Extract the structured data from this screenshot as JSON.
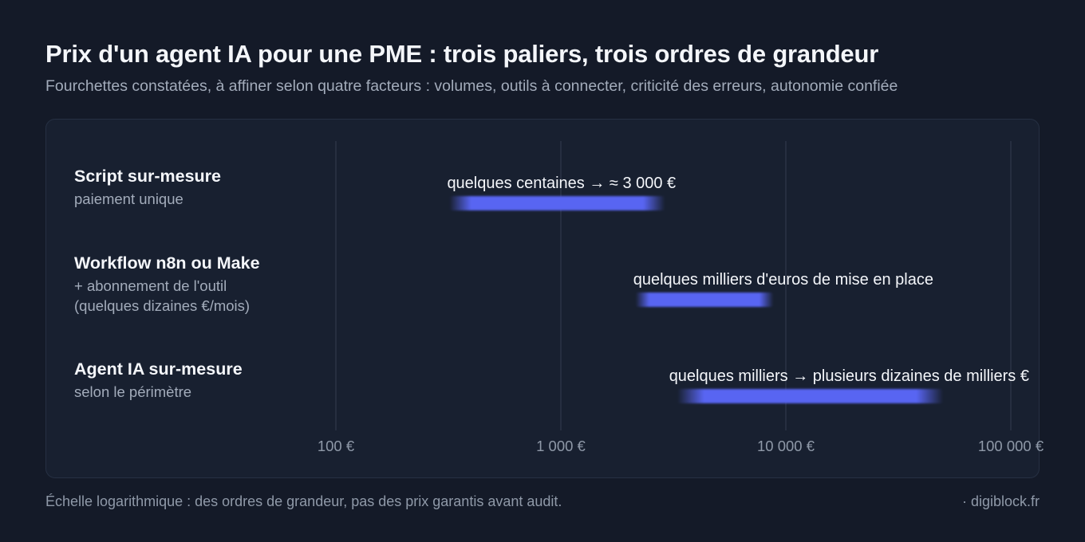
{
  "title": "Prix d'un agent IA pour une PME : trois paliers, trois ordres de grandeur",
  "subtitle": "Fourchettes constatées, à affiner selon quatre facteurs : volumes, outils à connecter, criticité des erreurs, autonomie confiée",
  "rows": [
    {
      "name": "Script sur-mesure",
      "detail": "paiement unique"
    },
    {
      "name": "Workflow n8n ou Make",
      "detail": "+ abonnement de l'outil\n(quelques dizaines €/mois)"
    },
    {
      "name": "Agent IA sur-mesure",
      "detail": "selon le périmètre"
    }
  ],
  "footer": {
    "note": "Échelle logarithmique : des ordres de grandeur, pas des prix garantis avant audit.",
    "brand": "· digiblock.fr"
  },
  "colors": {
    "bar": "#5865f2",
    "grid": "#333c4f",
    "tick": "#8f99a8"
  },
  "chart_data": {
    "type": "bar",
    "orientation": "horizontal-range",
    "scale": "log",
    "xlim": [
      100,
      100000
    ],
    "ticks": [
      {
        "value": 100,
        "label": "100 €"
      },
      {
        "value": 1000,
        "label": "1 000 €"
      },
      {
        "value": 10000,
        "label": "10 000 €"
      },
      {
        "value": 100000,
        "label": "100 000 €"
      }
    ],
    "grid": true,
    "categories": [
      "Script sur-mesure",
      "Workflow n8n ou Make",
      "Agent IA sur-mesure"
    ],
    "ranges": [
      {
        "low": 320,
        "high": 2900,
        "label": "quelques centaines → ≈ 3 000 €"
      },
      {
        "low": 2150,
        "high": 8800,
        "label": "quelques milliers d'euros de mise en place"
      },
      {
        "low": 3300,
        "high": 50000,
        "label": "quelques milliers → plusieurs dizaines de milliers €"
      }
    ]
  }
}
